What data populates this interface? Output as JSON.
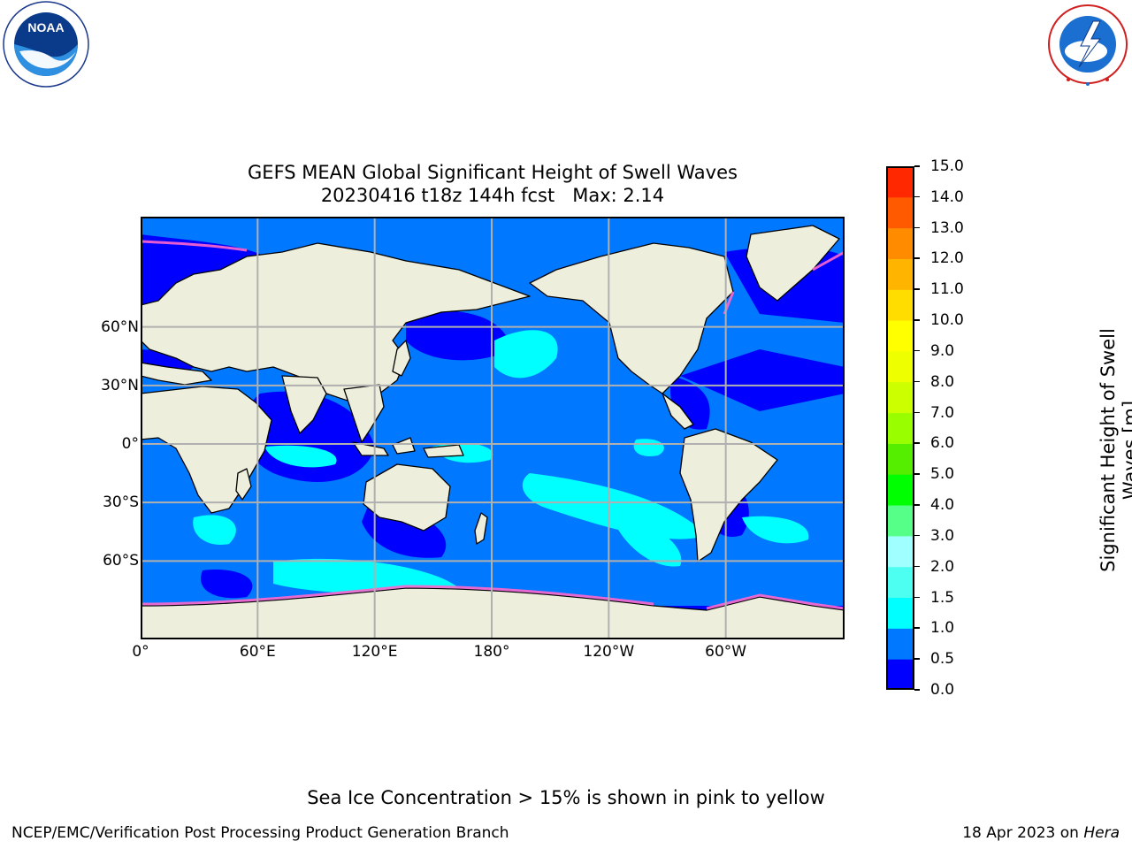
{
  "logos": {
    "noaa": {
      "name": "NOAA",
      "ring_text": "NATIONAL OCEANIC AND ATMOSPHERIC ADMINISTRATION · U.S. DEPARTMENT OF COMMERCE"
    },
    "nws": {
      "ring_text": "NATIONAL WEATHER SERVICE"
    }
  },
  "title": {
    "line1": "GEFS MEAN Global Significant Height of Swell Waves",
    "line2": "20230416 t18z 144h fcst   Max: 2.14"
  },
  "map": {
    "projection": "PlateCarree",
    "central_longitude": 180,
    "extent": {
      "lon_min": 0,
      "lon_max": 360,
      "lat_min": -80,
      "lat_max": 90
    },
    "grid": true,
    "lon_ticks": [
      {
        "value": 0,
        "label": "0°"
      },
      {
        "value": 60,
        "label": "60°E"
      },
      {
        "value": 120,
        "label": "120°E"
      },
      {
        "value": 180,
        "label": "180°"
      },
      {
        "value": 240,
        "label": "120°W"
      },
      {
        "value": 300,
        "label": "60°W"
      }
    ],
    "lat_ticks": [
      {
        "value": 60,
        "label": "60°N"
      },
      {
        "value": 30,
        "label": "30°N"
      },
      {
        "value": 0,
        "label": "0°"
      },
      {
        "value": -30,
        "label": "30°S"
      },
      {
        "value": -60,
        "label": "60°S"
      }
    ],
    "colors": {
      "land": "#eeeedc",
      "coast": "#000000",
      "grid": "#b0b0b0",
      "sea_ice": "#ff66cc"
    }
  },
  "colorbar": {
    "title": "Significant Height of Swell Waves [m]",
    "title_line1": "Significant Height of Swell",
    "title_line2": "Waves [m]",
    "bounds": [
      0.0,
      0.5,
      1.0,
      1.5,
      2.0,
      3.0,
      4.0,
      5.0,
      6.0,
      7.0,
      8.0,
      9.0,
      10.0,
      11.0,
      12.0,
      13.0,
      14.0,
      15.0
    ],
    "labels": [
      "0.0",
      "0.5",
      "1.0",
      "1.5",
      "2.0",
      "3.0",
      "4.0",
      "5.0",
      "6.0",
      "7.0",
      "8.0",
      "9.0",
      "10.0",
      "11.0",
      "12.0",
      "13.0",
      "14.0",
      "15.0"
    ],
    "colors": [
      "#0000ff",
      "#0078ff",
      "#00ffff",
      "#4dfff0",
      "#a0ffff",
      "#55ff88",
      "#00ff00",
      "#55ee00",
      "#99ff00",
      "#ccff00",
      "#eeff00",
      "#ffff00",
      "#ffdd00",
      "#ffb400",
      "#ff8c00",
      "#ff5a00",
      "#ff2800"
    ]
  },
  "footnote": "Sea Ice Concentration > 15% is shown in pink to yellow",
  "footer": {
    "left": "NCEP/EMC/Verification Post Processing Product Generation Branch",
    "right_date": "18 Apr 2023",
    "right_on": " on ",
    "right_host": "Hera"
  }
}
